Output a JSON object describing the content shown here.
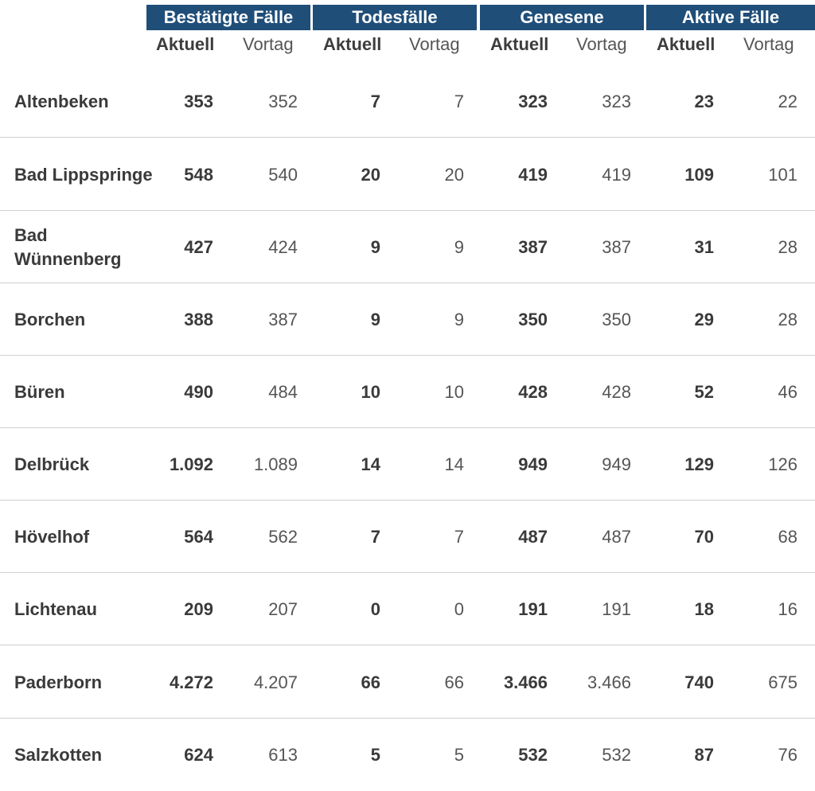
{
  "groups": [
    {
      "label": "Bestätigte Fälle"
    },
    {
      "label": "Todesfälle"
    },
    {
      "label": "Genesene"
    },
    {
      "label": "Aktive Fälle"
    }
  ],
  "subheaders": {
    "current": "Aktuell",
    "previous": "Vortag"
  },
  "rows": [
    {
      "name": "Altenbeken",
      "values": [
        "353",
        "352",
        "7",
        "7",
        "323",
        "323",
        "23",
        "22"
      ]
    },
    {
      "name": "Bad Lippspringe",
      "values": [
        "548",
        "540",
        "20",
        "20",
        "419",
        "419",
        "109",
        "101"
      ]
    },
    {
      "name": "Bad Wünnenberg",
      "values": [
        "427",
        "424",
        "9",
        "9",
        "387",
        "387",
        "31",
        "28"
      ]
    },
    {
      "name": "Borchen",
      "values": [
        "388",
        "387",
        "9",
        "9",
        "350",
        "350",
        "29",
        "28"
      ]
    },
    {
      "name": "Büren",
      "values": [
        "490",
        "484",
        "10",
        "10",
        "428",
        "428",
        "52",
        "46"
      ]
    },
    {
      "name": "Delbrück",
      "values": [
        "1.092",
        "1.089",
        "14",
        "14",
        "949",
        "949",
        "129",
        "126"
      ]
    },
    {
      "name": "Hövelhof",
      "values": [
        "564",
        "562",
        "7",
        "7",
        "487",
        "487",
        "70",
        "68"
      ]
    },
    {
      "name": "Lichtenau",
      "values": [
        "209",
        "207",
        "0",
        "0",
        "191",
        "191",
        "18",
        "16"
      ]
    },
    {
      "name": "Paderborn",
      "values": [
        "4.272",
        "4.207",
        "66",
        "66",
        "3.466",
        "3.466",
        "740",
        "675"
      ]
    },
    {
      "name": "Salzkotten",
      "values": [
        "624",
        "613",
        "5",
        "5",
        "532",
        "532",
        "87",
        "76"
      ]
    }
  ],
  "colors": {
    "header_background": "#1f4e79",
    "header_text": "#ffffff",
    "divider": "#d0d0d0"
  }
}
